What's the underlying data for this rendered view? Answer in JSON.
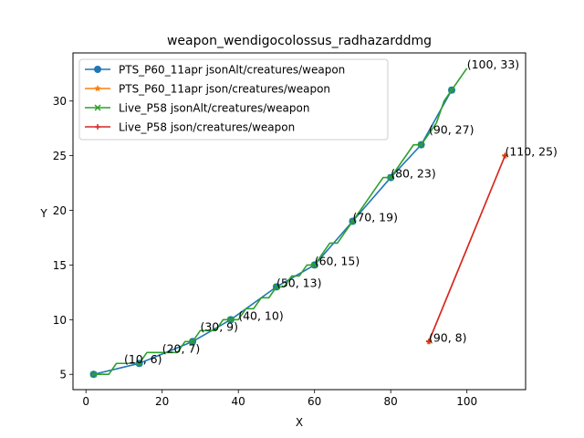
{
  "chart_data": {
    "type": "line",
    "title": "weapon_wendigocolossus_radhazarddmg",
    "xlabel": "X",
    "ylabel": "Y",
    "xlim": [
      -3.4,
      115.4
    ],
    "ylim": [
      3.6,
      34.4
    ],
    "xticks": [
      0,
      20,
      40,
      60,
      80,
      100
    ],
    "yticks": [
      5,
      10,
      15,
      20,
      25,
      30
    ],
    "grid": false,
    "legend_position": "upper-left",
    "series": [
      {
        "name": "PTS_P60_11apr jsonAlt/creatures/weapon",
        "color": "#1f77b4",
        "marker": "circle",
        "x": [
          2,
          14,
          28,
          38,
          50,
          60,
          70,
          80,
          88,
          96
        ],
        "y": [
          5,
          6,
          8,
          10,
          13,
          15,
          19,
          23,
          26,
          31
        ]
      },
      {
        "name": "PTS_P60_11apr json/creatures/weapon",
        "color": "#ff7f0e",
        "marker": "star",
        "x": [
          90,
          110
        ],
        "y": [
          8,
          25
        ]
      },
      {
        "name": "Live_P58 jsonAlt/creatures/weapon",
        "color": "#2ca02c",
        "marker": "x",
        "x": [
          2,
          4,
          6,
          8,
          10,
          12,
          14,
          16,
          18,
          20,
          22,
          24,
          26,
          28,
          30,
          32,
          34,
          36,
          38,
          40,
          42,
          44,
          46,
          48,
          50,
          52,
          54,
          56,
          58,
          60,
          62,
          64,
          66,
          68,
          70,
          72,
          74,
          76,
          78,
          80,
          82,
          84,
          86,
          88,
          90,
          92,
          94,
          96,
          98,
          100
        ],
        "y": [
          5,
          5,
          5,
          6,
          6,
          6,
          6,
          7,
          7,
          7,
          7,
          7,
          8,
          8,
          9,
          9,
          9,
          10,
          10,
          10,
          11,
          11,
          12,
          12,
          13,
          13,
          14,
          14,
          15,
          15,
          16,
          17,
          17,
          18,
          19,
          20,
          21,
          22,
          23,
          23,
          24,
          25,
          26,
          26,
          27,
          28,
          30,
          31,
          32,
          33
        ],
        "markers": [
          [
            2,
            5
          ],
          [
            14,
            6
          ],
          [
            28,
            8
          ],
          [
            38,
            10
          ],
          [
            50,
            13
          ],
          [
            60,
            15
          ],
          [
            70,
            19
          ],
          [
            80,
            23
          ],
          [
            88,
            26
          ],
          [
            96,
            31
          ]
        ]
      },
      {
        "name": "Live_P58 json/creatures/weapon",
        "color": "#d62728",
        "marker": "plus",
        "x": [
          90,
          110
        ],
        "y": [
          8,
          25
        ]
      }
    ],
    "annotations": [
      {
        "text": "(10, 6)",
        "x": 10,
        "y": 6
      },
      {
        "text": "(20, 7)",
        "x": 20,
        "y": 7
      },
      {
        "text": "(30, 9)",
        "x": 30,
        "y": 9
      },
      {
        "text": "(40, 10)",
        "x": 40,
        "y": 10
      },
      {
        "text": "(50, 13)",
        "x": 50,
        "y": 13
      },
      {
        "text": "(60, 15)",
        "x": 60,
        "y": 15
      },
      {
        "text": "(70, 19)",
        "x": 70,
        "y": 19
      },
      {
        "text": "(80, 23)",
        "x": 80,
        "y": 23
      },
      {
        "text": "(90, 27)",
        "x": 90,
        "y": 27
      },
      {
        "text": "(100, 33)",
        "x": 100,
        "y": 33
      },
      {
        "text": "(90, 8)",
        "x": 90,
        "y": 8
      },
      {
        "text": "(110, 25)",
        "x": 110,
        "y": 25
      }
    ]
  }
}
